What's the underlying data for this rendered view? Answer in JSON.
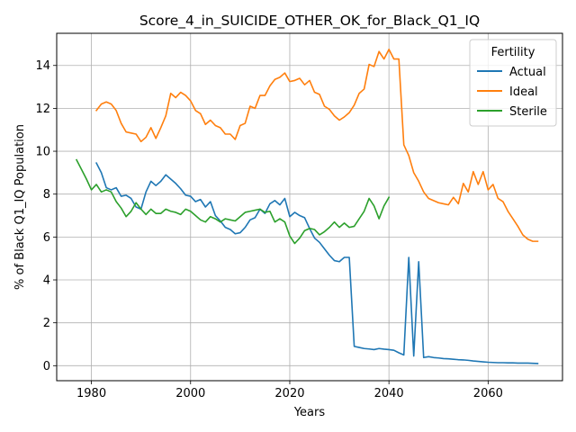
{
  "chart_data": {
    "type": "line",
    "title": "Score_4_in_SUICIDE_OTHER_OK_for_Black_Q1_IQ",
    "xlabel": "Years",
    "ylabel": "% of Black Q1_IQ Population",
    "xlim": [
      1973,
      2075
    ],
    "ylim": [
      -0.7,
      15.5
    ],
    "xticks": [
      1980,
      2000,
      2020,
      2040,
      2060
    ],
    "yticks": [
      0,
      2,
      4,
      6,
      8,
      10,
      12,
      14
    ],
    "grid": true,
    "legend": {
      "title": "Fertility",
      "placement": "top-right"
    },
    "series": [
      {
        "name": "Actual",
        "color": "#1f77b4",
        "x": [
          1981,
          1982,
          1983,
          1984,
          1985,
          1986,
          1987,
          1988,
          1989,
          1990,
          1991,
          1992,
          1993,
          1994,
          1995,
          1996,
          1997,
          1998,
          1999,
          2000,
          2001,
          2002,
          2003,
          2004,
          2005,
          2006,
          2007,
          2008,
          2009,
          2010,
          2011,
          2012,
          2013,
          2014,
          2015,
          2016,
          2017,
          2018,
          2019,
          2020,
          2021,
          2022,
          2023,
          2024,
          2025,
          2026,
          2027,
          2028,
          2029,
          2030,
          2031,
          2032,
          2033,
          2034,
          2035,
          2036,
          2037,
          2038,
          2039,
          2040,
          2041,
          2042,
          2043,
          2044,
          2045,
          2046,
          2047,
          2048,
          2049,
          2050,
          2051,
          2052,
          2053,
          2054,
          2055,
          2056,
          2057,
          2058,
          2059,
          2060,
          2061,
          2062,
          2063,
          2064,
          2065,
          2066,
          2067,
          2068,
          2069,
          2070
        ],
        "y": [
          9.45,
          9.0,
          8.3,
          8.2,
          8.3,
          7.9,
          7.95,
          7.8,
          7.4,
          7.3,
          8.1,
          8.6,
          8.4,
          8.6,
          8.9,
          8.7,
          8.5,
          8.25,
          7.95,
          7.9,
          7.65,
          7.75,
          7.4,
          7.65,
          7.0,
          6.75,
          6.45,
          6.35,
          6.15,
          6.2,
          6.45,
          6.8,
          6.9,
          7.3,
          7.1,
          7.55,
          7.7,
          7.5,
          7.8,
          6.95,
          7.15,
          7.0,
          6.9,
          6.4,
          5.95,
          5.75,
          5.45,
          5.15,
          4.9,
          4.85,
          5.05,
          5.05,
          0.9,
          0.85,
          0.8,
          0.78,
          0.75,
          0.8,
          0.77,
          0.75,
          0.72,
          0.6,
          0.5,
          5.05,
          0.45,
          4.85,
          0.38,
          0.42,
          0.38,
          0.36,
          0.33,
          0.32,
          0.3,
          0.28,
          0.27,
          0.25,
          0.22,
          0.2,
          0.18,
          0.16,
          0.15,
          0.14,
          0.14,
          0.13,
          0.13,
          0.12,
          0.12,
          0.12,
          0.11,
          0.1
        ]
      },
      {
        "name": "Ideal",
        "color": "#ff7f0e",
        "x": [
          1981,
          1982,
          1983,
          1984,
          1985,
          1986,
          1987,
          1988,
          1989,
          1990,
          1991,
          1992,
          1993,
          1994,
          1995,
          1996,
          1997,
          1998,
          1999,
          2000,
          2001,
          2002,
          2003,
          2004,
          2005,
          2006,
          2007,
          2008,
          2009,
          2010,
          2011,
          2012,
          2013,
          2014,
          2015,
          2016,
          2017,
          2018,
          2019,
          2020,
          2021,
          2022,
          2023,
          2024,
          2025,
          2026,
          2027,
          2028,
          2029,
          2030,
          2031,
          2032,
          2033,
          2034,
          2035,
          2036,
          2037,
          2038,
          2039,
          2040,
          2041,
          2042,
          2043,
          2044,
          2045,
          2046,
          2047,
          2048,
          2049,
          2050,
          2051,
          2052,
          2053,
          2054,
          2055,
          2056,
          2057,
          2058,
          2059,
          2060,
          2061,
          2062,
          2063,
          2064,
          2065,
          2066,
          2067,
          2068,
          2069,
          2070
        ],
        "y": [
          11.9,
          12.2,
          12.3,
          12.2,
          11.9,
          11.3,
          10.9,
          10.85,
          10.8,
          10.45,
          10.65,
          11.1,
          10.6,
          11.1,
          11.65,
          12.7,
          12.5,
          12.75,
          12.6,
          12.35,
          11.9,
          11.75,
          11.25,
          11.45,
          11.2,
          11.1,
          10.8,
          10.8,
          10.55,
          11.2,
          11.3,
          12.1,
          12.0,
          12.6,
          12.6,
          13.05,
          13.35,
          13.45,
          13.65,
          13.25,
          13.3,
          13.4,
          13.1,
          13.3,
          12.75,
          12.65,
          12.1,
          11.95,
          11.65,
          11.45,
          11.6,
          11.8,
          12.15,
          12.7,
          12.9,
          14.05,
          13.95,
          14.65,
          14.3,
          14.75,
          14.3,
          14.3,
          10.3,
          9.8,
          9.0,
          8.6,
          8.1,
          7.8,
          7.7,
          7.6,
          7.55,
          7.5,
          7.85,
          7.55,
          8.5,
          8.1,
          9.05,
          8.45,
          9.05,
          8.2,
          8.45,
          7.8,
          7.65,
          7.2,
          6.85,
          6.5,
          6.1,
          5.9,
          5.8,
          5.8
        ]
      },
      {
        "name": "Sterile",
        "color": "#2ca02c",
        "x": [
          1977,
          1978,
          1979,
          1980,
          1981,
          1982,
          1983,
          1984,
          1985,
          1986,
          1987,
          1988,
          1989,
          1990,
          1991,
          1992,
          1993,
          1994,
          1995,
          1996,
          1997,
          1998,
          1999,
          2000,
          2001,
          2002,
          2003,
          2004,
          2005,
          2006,
          2007,
          2008,
          2009,
          2010,
          2011,
          2012,
          2013,
          2014,
          2015,
          2016,
          2017,
          2018,
          2019,
          2020,
          2021,
          2022,
          2023,
          2024,
          2025,
          2026,
          2027,
          2028,
          2029,
          2030,
          2031,
          2032,
          2033,
          2034,
          2035,
          2036,
          2037,
          2038,
          2039,
          2040
        ],
        "y": [
          9.6,
          9.15,
          8.7,
          8.2,
          8.45,
          8.1,
          8.2,
          8.1,
          7.65,
          7.35,
          6.95,
          7.2,
          7.6,
          7.3,
          7.05,
          7.3,
          7.1,
          7.1,
          7.3,
          7.2,
          7.15,
          7.05,
          7.3,
          7.2,
          7.0,
          6.8,
          6.7,
          6.95,
          6.85,
          6.7,
          6.85,
          6.8,
          6.75,
          6.95,
          7.15,
          7.2,
          7.25,
          7.3,
          7.15,
          7.2,
          6.7,
          6.85,
          6.7,
          6.05,
          5.7,
          5.95,
          6.3,
          6.4,
          6.35,
          6.1,
          6.25,
          6.45,
          6.7,
          6.45,
          6.65,
          6.45,
          6.5,
          6.85,
          7.2,
          7.8,
          7.45,
          6.85,
          7.45,
          7.85
        ]
      }
    ]
  }
}
